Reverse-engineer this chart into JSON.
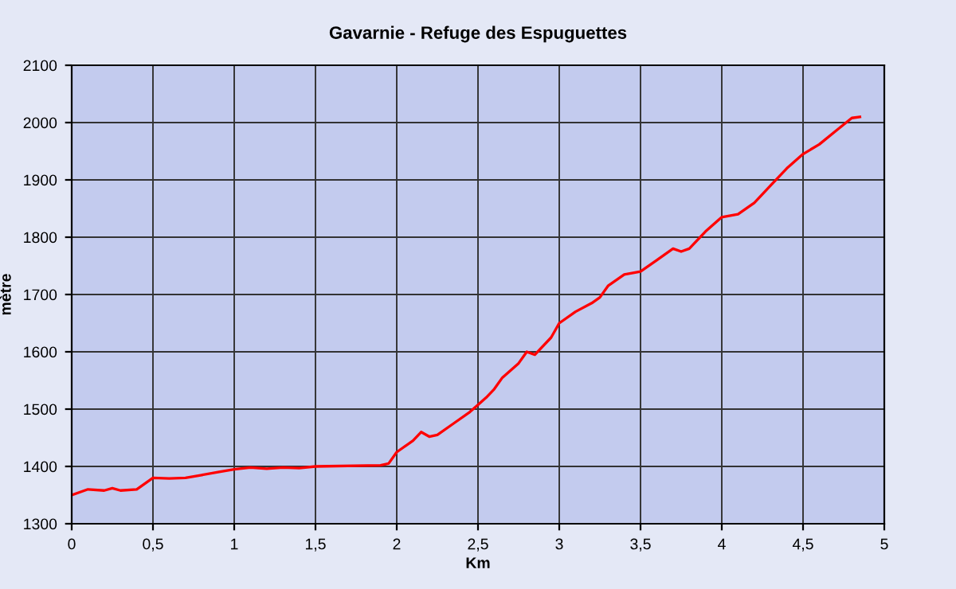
{
  "chart_data": {
    "type": "line",
    "title": "Gavarnie - Refuge des Espuguettes",
    "xlabel": "Km",
    "ylabel": "mètre",
    "x": [
      0,
      0.1,
      0.2,
      0.25,
      0.3,
      0.4,
      0.5,
      0.6,
      0.7,
      0.8,
      0.9,
      1.0,
      1.1,
      1.2,
      1.3,
      1.4,
      1.5,
      1.9,
      1.95,
      2.0,
      2.1,
      2.15,
      2.2,
      2.25,
      2.35,
      2.45,
      2.55,
      2.6,
      2.65,
      2.75,
      2.8,
      2.85,
      2.95,
      3.0,
      3.1,
      3.2,
      3.25,
      3.3,
      3.4,
      3.5,
      3.6,
      3.7,
      3.75,
      3.8,
      3.9,
      4.0,
      4.1,
      4.2,
      4.3,
      4.4,
      4.5,
      4.6,
      4.7,
      4.8,
      4.85
    ],
    "series": [
      {
        "color": "#ff0000",
        "values": [
          1350,
          1360,
          1358,
          1362,
          1358,
          1360,
          1380,
          1379,
          1380,
          1385,
          1390,
          1395,
          1398,
          1396,
          1398,
          1397,
          1400,
          1402,
          1405,
          1425,
          1445,
          1460,
          1452,
          1455,
          1475,
          1495,
          1520,
          1535,
          1555,
          1580,
          1600,
          1595,
          1625,
          1650,
          1670,
          1685,
          1695,
          1715,
          1735,
          1740,
          1760,
          1780,
          1775,
          1780,
          1810,
          1835,
          1840,
          1860,
          1890,
          1920,
          1945,
          1962,
          1985,
          2008,
          2010
        ]
      }
    ],
    "xlim": [
      0,
      5
    ],
    "ylim": [
      1300,
      2100
    ],
    "xticks": [
      0,
      {
        "value": 0.5,
        "label": "0,5"
      },
      1,
      {
        "value": 1.5,
        "label": "1,5"
      },
      2,
      {
        "value": 2.5,
        "label": "2,5"
      },
      3,
      {
        "value": 3.5,
        "label": "3,5"
      },
      4,
      {
        "value": 4.5,
        "label": "4,5"
      },
      5
    ],
    "yticks": [
      1300,
      1400,
      1500,
      1600,
      1700,
      1800,
      1900,
      2000,
      2100
    ],
    "grid": true,
    "marker": "none",
    "line_style": "solid"
  }
}
